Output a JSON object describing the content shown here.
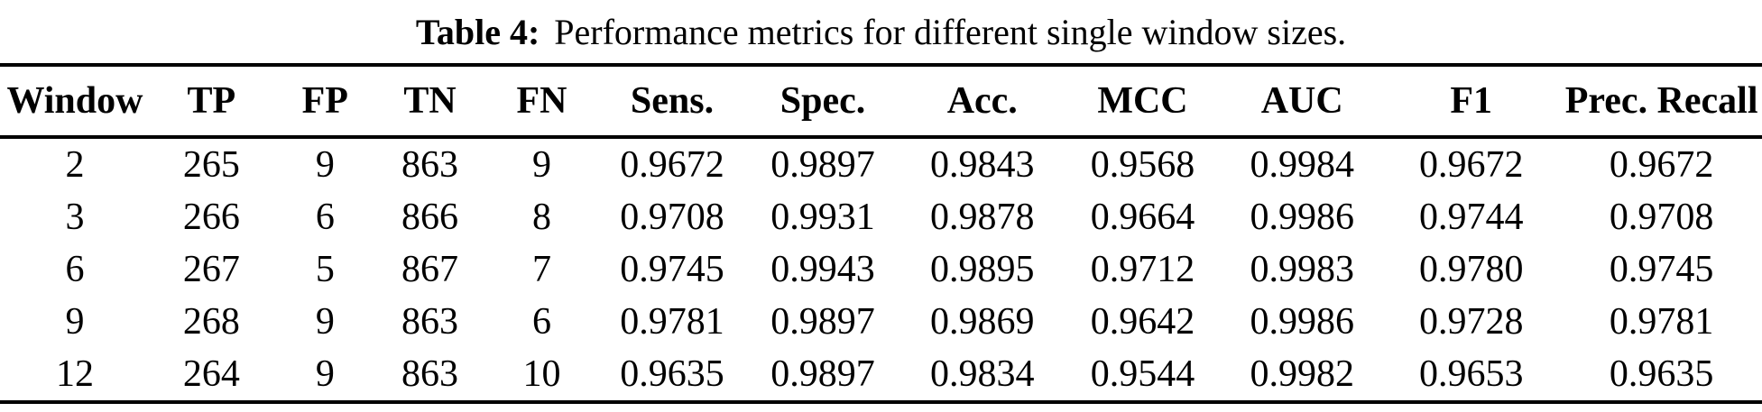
{
  "caption": {
    "label": "Table 4:",
    "text": "Performance metrics for different single window sizes."
  },
  "table": {
    "columns": [
      "Window",
      "TP",
      "FP",
      "TN",
      "FN",
      "Sens.",
      "Spec.",
      "Acc.",
      "MCC",
      "AUC",
      "F1",
      "Prec. Recall"
    ],
    "rows": [
      [
        "2",
        "265",
        "9",
        "863",
        "9",
        "0.9672",
        "0.9897",
        "0.9843",
        "0.9568",
        "0.9984",
        "0.9672",
        "0.9672"
      ],
      [
        "3",
        "266",
        "6",
        "866",
        "8",
        "0.9708",
        "0.9931",
        "0.9878",
        "0.9664",
        "0.9986",
        "0.9744",
        "0.9708"
      ],
      [
        "6",
        "267",
        "5",
        "867",
        "7",
        "0.9745",
        "0.9943",
        "0.9895",
        "0.9712",
        "0.9983",
        "0.9780",
        "0.9745"
      ],
      [
        "9",
        "268",
        "9",
        "863",
        "6",
        "0.9781",
        "0.9897",
        "0.9869",
        "0.9642",
        "0.9986",
        "0.9728",
        "0.9781"
      ],
      [
        "12",
        "264",
        "9",
        "863",
        "10",
        "0.9635",
        "0.9897",
        "0.9834",
        "0.9544",
        "0.9982",
        "0.9653",
        "0.9635"
      ]
    ]
  },
  "colors": {
    "text": "#000000",
    "background": "#ffffff",
    "rule": "#000000"
  },
  "chart_data": {
    "type": "table",
    "title": "Table 4: Performance metrics for different single window sizes.",
    "columns": [
      "Window",
      "TP",
      "FP",
      "TN",
      "FN",
      "Sens.",
      "Spec.",
      "Acc.",
      "MCC",
      "AUC",
      "F1",
      "Prec. Recall"
    ],
    "rows": [
      [
        2,
        265,
        9,
        863,
        9,
        0.9672,
        0.9897,
        0.9843,
        0.9568,
        0.9984,
        0.9672,
        0.9672
      ],
      [
        3,
        266,
        6,
        866,
        8,
        0.9708,
        0.9931,
        0.9878,
        0.9664,
        0.9986,
        0.9744,
        0.9708
      ],
      [
        6,
        267,
        5,
        867,
        7,
        0.9745,
        0.9943,
        0.9895,
        0.9712,
        0.9983,
        0.978,
        0.9745
      ],
      [
        9,
        268,
        9,
        863,
        6,
        0.9781,
        0.9897,
        0.9869,
        0.9642,
        0.9986,
        0.9728,
        0.9781
      ],
      [
        12,
        264,
        9,
        863,
        10,
        0.9635,
        0.9897,
        0.9834,
        0.9544,
        0.9982,
        0.9653,
        0.9635
      ]
    ]
  }
}
